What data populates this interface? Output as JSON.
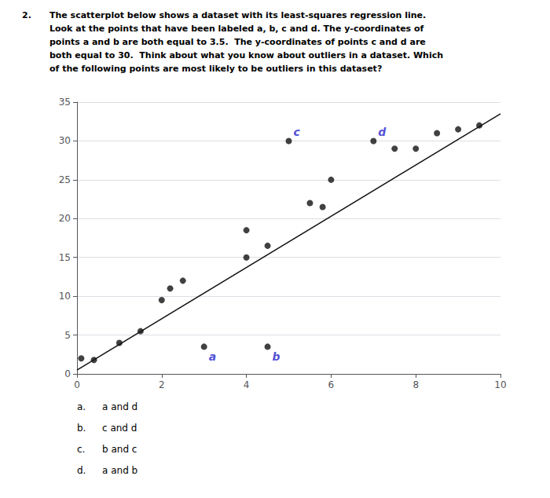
{
  "chart_data": {
    "type": "scatter",
    "title": "2.",
    "subtitle": [
      "The scatterplot below shows a dataset with its least-squares regression line.",
      "Look at the points that have been labeled a, b, c and d. The y-coordinates of",
      "points a and b are both equal to 3.5.  The y-coordinates of points c and d are",
      "both equal to 30.  Think about what you know about outliers in a dataset. Which",
      "of the following points are most likely to be outliers in this dataset?"
    ],
    "series": [
      {
        "type": "scatter",
        "color": "#111111",
        "x": [
          0.1,
          0.4,
          1.0,
          1.5,
          2.0,
          2.2,
          2.5,
          3.0,
          4.0,
          4.0,
          4.5,
          4.5,
          5.5,
          5.8,
          5.0,
          6.0,
          7.0,
          7.5,
          8.0,
          8.5,
          9.0,
          9.5
        ],
        "values": [
          2.0,
          1.8,
          4.0,
          5.5,
          9.5,
          11.0,
          12.0,
          3.5,
          15.0,
          18.5,
          16.5,
          3.5,
          22.0,
          21.5,
          30.0,
          25.0,
          30.0,
          29.0,
          29.0,
          31.0,
          31.5,
          32.0
        ]
      },
      {
        "type": "line",
        "color": "#111111",
        "x": [
          0.0,
          10.0
        ],
        "values": [
          0.5,
          33.5
        ]
      }
    ],
    "annotations": [
      {
        "text": "a",
        "x": 3.0,
        "y": 3.5,
        "color": "#2222cc"
      },
      {
        "text": "b",
        "x": 4.5,
        "y": 3.5,
        "color": "#2222cc"
      },
      {
        "text": "c",
        "x": 5.0,
        "y": 30.0,
        "color": "#2222cc"
      },
      {
        "text": "d",
        "x": 7.0,
        "y": 30.0,
        "color": "#2222cc"
      }
    ],
    "choices": [
      {
        "letter": "a.",
        "text": "a and d"
      },
      {
        "letter": "b.",
        "text": "c and d"
      },
      {
        "letter": "c.",
        "text": "b and c"
      },
      {
        "letter": "d.",
        "text": "a and b"
      }
    ],
    "xlim": [
      0,
      10
    ],
    "ylim": [
      0,
      35
    ],
    "xticks": [
      0,
      2,
      4,
      6,
      8,
      10
    ],
    "yticks": [
      0,
      5,
      10,
      15,
      20,
      25,
      30,
      35
    ],
    "grid": true
  }
}
